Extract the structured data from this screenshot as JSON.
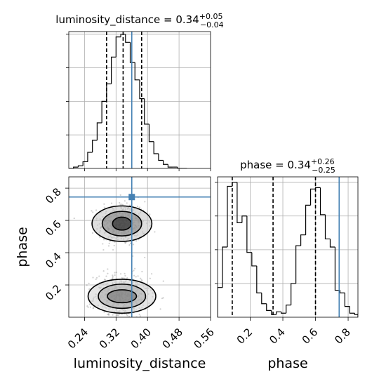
{
  "chart_data": {
    "type": "corner",
    "parameters": [
      "luminosity_distance",
      "phase"
    ],
    "truth": {
      "luminosity_distance": 0.36,
      "phase": 0.745
    },
    "colors": {
      "truth": "#4682b4",
      "hist": "#000000",
      "grid": "#b0b0b0",
      "contour": "#000000"
    },
    "panels": [
      {
        "id": "hist_luminosity_distance",
        "type": "histogram",
        "title": {
          "prefix": "luminosity_distance = 0.34",
          "plus": "+0.05",
          "minus": "−0.04"
        },
        "xlim": [
          0.2,
          0.56
        ],
        "ylim": [
          0,
          1.02
        ],
        "bin_edges": [
          0.2,
          0.212,
          0.224,
          0.236,
          0.248,
          0.26,
          0.272,
          0.284,
          0.296,
          0.308,
          0.32,
          0.332,
          0.344,
          0.356,
          0.368,
          0.38,
          0.392,
          0.404,
          0.416,
          0.428,
          0.44,
          0.452,
          0.464,
          0.476,
          0.488,
          0.5
        ],
        "counts": [
          0.0,
          0.01,
          0.02,
          0.05,
          0.12,
          0.21,
          0.34,
          0.5,
          0.63,
          0.83,
          0.98,
          1.0,
          0.94,
          0.79,
          0.66,
          0.52,
          0.33,
          0.2,
          0.11,
          0.06,
          0.03,
          0.01,
          0.01,
          0.0,
          0.0
        ],
        "quantiles": [
          0.296,
          0.338,
          0.385
        ],
        "truth": 0.36
      },
      {
        "id": "hist_phase",
        "type": "histogram",
        "title": {
          "prefix": "phase = 0.34",
          "plus": "+0.26",
          "minus": "−0.25"
        },
        "xlim": [
          0.0,
          0.86
        ],
        "ylim": [
          0,
          1.04
        ],
        "bin_edges": [
          0.0,
          0.03,
          0.06,
          0.09,
          0.12,
          0.15,
          0.18,
          0.21,
          0.24,
          0.27,
          0.3,
          0.33,
          0.36,
          0.39,
          0.42,
          0.45,
          0.48,
          0.51,
          0.54,
          0.57,
          0.6,
          0.63,
          0.66,
          0.69,
          0.72,
          0.75,
          0.78,
          0.81,
          0.84,
          0.86
        ],
        "counts": [
          0.22,
          0.52,
          0.97,
          1.0,
          0.7,
          0.75,
          0.48,
          0.38,
          0.18,
          0.1,
          0.05,
          0.02,
          0.04,
          0.03,
          0.09,
          0.25,
          0.53,
          0.61,
          0.83,
          0.95,
          0.96,
          0.76,
          0.58,
          0.52,
          0.2,
          0.18,
          0.08,
          0.03,
          0.02
        ],
        "quantiles": [
          0.09,
          0.34,
          0.6
        ],
        "truth": 0.745,
        "xticks": [
          0.2,
          0.4,
          0.6,
          0.8
        ],
        "xtick_labels": [
          "0.2",
          "0.4",
          "0.6",
          "0.8"
        ],
        "xlabel": "phase"
      },
      {
        "id": "scatter_luminosity_distance_phase",
        "type": "2d_density",
        "xlim": [
          0.2,
          0.56
        ],
        "ylim": [
          0.0,
          0.87
        ],
        "xticks": [
          0.24,
          0.32,
          0.4,
          0.48,
          0.56
        ],
        "xtick_labels": [
          "0.24",
          "0.32",
          "0.40",
          "0.48",
          "0.56"
        ],
        "yticks": [
          0.2,
          0.4,
          0.6,
          0.8
        ],
        "ytick_labels": [
          "0.2",
          "0.4",
          "0.6",
          "0.8"
        ],
        "xlabel": "luminosity_distance",
        "ylabel": "phase",
        "modes": [
          {
            "cx": 0.335,
            "cy": 0.58,
            "sx": 0.03,
            "sy": 0.07,
            "weight": 0.45
          },
          {
            "cx": 0.335,
            "cy": 0.13,
            "sx": 0.035,
            "sy": 0.07,
            "weight": 0.55
          }
        ],
        "contours": [
          {
            "mode": 0,
            "rx": 0.024,
            "ry": 0.04,
            "fill": "#111111"
          },
          {
            "mode": 0,
            "rx": 0.05,
            "ry": 0.076,
            "fill": "#7a7a7a"
          },
          {
            "mode": 0,
            "rx": 0.076,
            "ry": 0.11,
            "fill": "#c2c2c2"
          },
          {
            "mode": 1,
            "rx": 0.037,
            "ry": 0.04,
            "fill": "#6b6b6b"
          },
          {
            "mode": 1,
            "rx": 0.06,
            "ry": 0.075,
            "fill": "#a8a8a8"
          },
          {
            "mode": 1,
            "rx": 0.086,
            "ry": 0.105,
            "fill": "#d0d0d0"
          }
        ],
        "truth": [
          0.36,
          0.745
        ]
      }
    ]
  }
}
